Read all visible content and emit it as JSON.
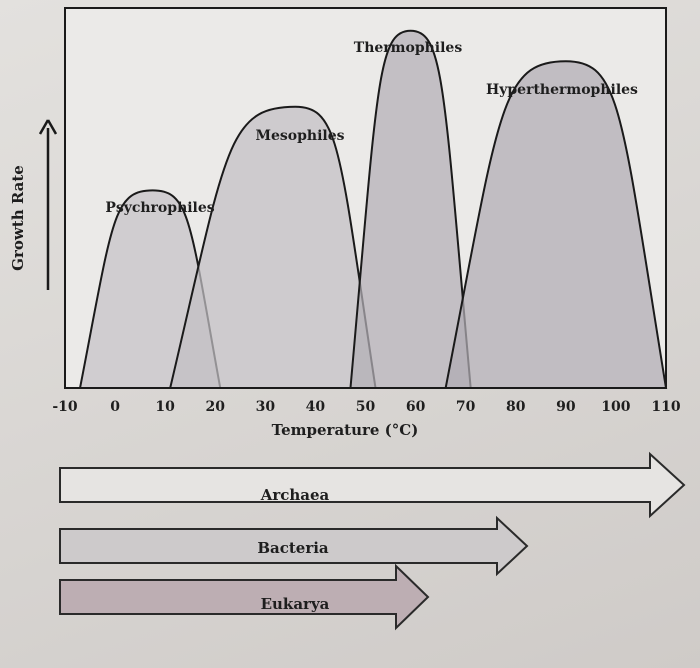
{
  "chart_data": {
    "type": "area",
    "title": "",
    "xlabel": "Temperature (°C)",
    "ylabel": "Growth Rate",
    "xlim": [
      -10,
      110
    ],
    "ylim": [
      0,
      1
    ],
    "x_ticks": [
      "-10",
      "0",
      "10",
      "20",
      "30",
      "40",
      "50",
      "60",
      "70",
      "80",
      "90",
      "100",
      "110"
    ],
    "grid": false,
    "series": [
      {
        "name": "Psychrophiles",
        "min": -7,
        "peak": 7.5,
        "max": 21,
        "height": 0.52,
        "color": "#c5c2c6"
      },
      {
        "name": "Mesophiles",
        "min": 11,
        "peak": 36,
        "max": 52,
        "height": 0.74,
        "color": "#c2bfc4"
      },
      {
        "name": "Thermophiles",
        "min": 47,
        "peak": 59,
        "max": 71,
        "height": 0.94,
        "color": "#b3afb6"
      },
      {
        "name": "Hyperthermophiles",
        "min": 66,
        "peak": 90,
        "max": 110,
        "height": 0.86,
        "color": "#b0acb3"
      }
    ],
    "domain_arrows": [
      {
        "name": "Archaea",
        "extent": "-10 to >110",
        "color": "#e6e4e2"
      },
      {
        "name": "Bacteria",
        "extent": "-10 to ~80",
        "color": "#cdcacb"
      },
      {
        "name": "Eukarya",
        "extent": "-10 to ~60",
        "color": "#bdaeb3"
      }
    ]
  }
}
